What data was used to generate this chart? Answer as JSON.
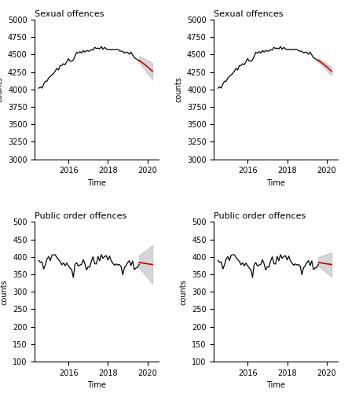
{
  "title_sexual": "Sexual offences",
  "title_public": "Public order offences",
  "xlabel": "Time",
  "ylabel": "counts",
  "sexual_ylim": [
    3000,
    5000
  ],
  "public_ylim": [
    100,
    500
  ],
  "xticks": [
    2016,
    2018,
    2020
  ],
  "background_color": "#ffffff",
  "observed_color": "#000000",
  "prediction_color": "#cc0000",
  "shading_color": "#bbbbbb",
  "shading_alpha": 0.6
}
